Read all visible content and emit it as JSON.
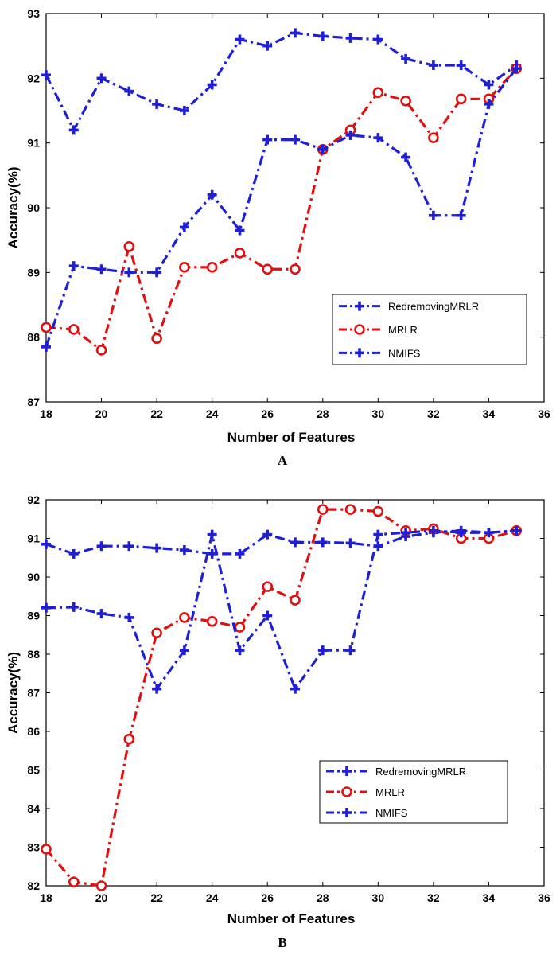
{
  "chart_data": [
    {
      "type": "line",
      "panel_label": "A",
      "xlabel": "Number of Features",
      "ylabel": "Accuracy(%)",
      "xlim": [
        18,
        36
      ],
      "ylim": [
        87,
        93
      ],
      "xticks": [
        18,
        20,
        22,
        24,
        26,
        28,
        30,
        32,
        34,
        36
      ],
      "yticks": [
        87,
        88,
        89,
        90,
        91,
        92,
        93
      ],
      "grid": false,
      "legend_position": "lower-right",
      "series": [
        {
          "name": "RedremovingMRLR",
          "color": "#1f1fd6",
          "marker": "plus",
          "x": [
            18,
            19,
            20,
            21,
            22,
            23,
            24,
            25,
            26,
            27,
            28,
            29,
            30,
            31,
            32,
            33,
            34,
            35
          ],
          "y": [
            92.05,
            91.2,
            92.0,
            91.8,
            91.6,
            91.5,
            91.9,
            92.6,
            92.5,
            92.7,
            92.65,
            92.62,
            92.6,
            92.3,
            92.2,
            92.2,
            91.9,
            92.2
          ]
        },
        {
          "name": "MRLR",
          "color": "#e01010",
          "marker": "circle",
          "x": [
            18,
            19,
            20,
            21,
            22,
            23,
            24,
            25,
            26,
            27,
            28,
            29,
            30,
            31,
            32,
            33,
            34,
            35
          ],
          "y": [
            88.15,
            88.12,
            87.8,
            89.4,
            87.98,
            89.08,
            89.08,
            89.3,
            89.05,
            89.05,
            90.9,
            91.2,
            91.78,
            91.65,
            91.08,
            91.68,
            91.68,
            92.15
          ]
        },
        {
          "name": "NMIFS",
          "color": "#1f1fd6",
          "marker": "plus",
          "x": [
            18,
            19,
            20,
            21,
            22,
            23,
            24,
            25,
            26,
            27,
            28,
            29,
            30,
            31,
            32,
            33,
            34,
            35
          ],
          "y": [
            87.85,
            89.1,
            89.05,
            89.0,
            89.0,
            89.7,
            90.2,
            89.65,
            91.05,
            91.05,
            90.9,
            91.12,
            91.08,
            90.78,
            89.88,
            89.88,
            91.6,
            92.15
          ]
        }
      ]
    },
    {
      "type": "line",
      "panel_label": "B",
      "xlabel": "Number of Features",
      "ylabel": "Accuracy(%)",
      "xlim": [
        18,
        36
      ],
      "ylim": [
        82,
        92
      ],
      "xticks": [
        18,
        20,
        22,
        24,
        26,
        28,
        30,
        32,
        34,
        36
      ],
      "yticks": [
        82,
        83,
        84,
        85,
        86,
        87,
        88,
        89,
        90,
        91,
        92
      ],
      "grid": false,
      "legend_position": "lower-right",
      "series": [
        {
          "name": "RedremovingMRLR",
          "color": "#1f1fd6",
          "marker": "plus",
          "x": [
            18,
            19,
            20,
            21,
            22,
            23,
            24,
            25,
            26,
            27,
            28,
            29,
            30,
            31,
            32,
            33,
            34,
            35
          ],
          "y": [
            90.85,
            90.6,
            90.8,
            90.8,
            90.75,
            90.7,
            90.6,
            90.6,
            91.1,
            90.9,
            90.9,
            90.88,
            90.8,
            91.05,
            91.15,
            91.2,
            91.15,
            91.2
          ]
        },
        {
          "name": "MRLR",
          "color": "#e01010",
          "marker": "circle",
          "x": [
            18,
            19,
            20,
            21,
            22,
            23,
            24,
            25,
            26,
            27,
            28,
            29,
            30,
            31,
            32,
            33,
            34,
            35
          ],
          "y": [
            82.95,
            82.1,
            82.0,
            85.8,
            88.55,
            88.95,
            88.85,
            88.7,
            89.75,
            89.4,
            91.75,
            91.75,
            91.7,
            91.2,
            91.25,
            91.0,
            91.0,
            91.2
          ]
        },
        {
          "name": "NMIFS",
          "color": "#1f1fd6",
          "marker": "plus",
          "x": [
            18,
            19,
            20,
            21,
            22,
            23,
            24,
            25,
            26,
            27,
            28,
            29,
            30,
            31,
            32,
            33,
            34,
            35
          ],
          "y": [
            89.2,
            89.22,
            89.05,
            88.95,
            87.1,
            88.1,
            91.1,
            88.1,
            89.0,
            87.1,
            88.1,
            88.1,
            91.1,
            91.15,
            91.2,
            91.15,
            91.15,
            91.2
          ]
        }
      ]
    }
  ]
}
